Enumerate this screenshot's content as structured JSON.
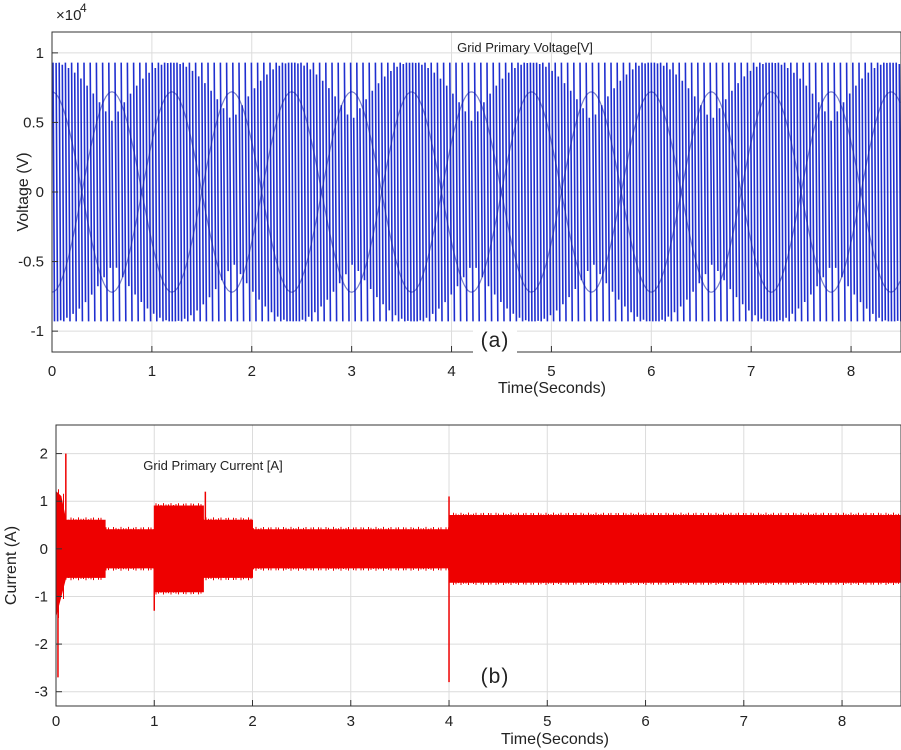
{
  "chart_data": [
    {
      "type": "line",
      "title": "Grid Primary Voltage[V]",
      "panel_label": "(a)",
      "xlabel": "Time(Seconds)",
      "ylabel": "Voltage (V)",
      "y_multiplier": "×10",
      "y_exponent": "4",
      "xlim": [
        0,
        8.5
      ],
      "ylim": [
        -1.15,
        1.15
      ],
      "xticks": [
        "0",
        "1",
        "2",
        "3",
        "4",
        "5",
        "6",
        "7",
        "8"
      ],
      "yticks": [
        "1",
        "0.5",
        "0",
        "-0.5",
        "-1"
      ],
      "grid": true,
      "series": [
        {
          "color": "#1f2fd0",
          "envelope_x": [
            0,
            8.5
          ],
          "envelope_upper": [
            0.93,
            0.93
          ],
          "envelope_lower": [
            -0.93,
            -0.93
          ],
          "beat_period_s": 1.2
        }
      ]
    },
    {
      "type": "line",
      "title": "Grid Primary Current [A]",
      "panel_label": "(b)",
      "xlabel": "Time(Seconds)",
      "ylabel": "Current (A)",
      "xlim": [
        0,
        8.6
      ],
      "ylim": [
        -3.3,
        2.6
      ],
      "xticks": [
        "0",
        "1",
        "2",
        "3",
        "4",
        "5",
        "6",
        "7",
        "8"
      ],
      "yticks": [
        "2",
        "1",
        "0",
        "-1",
        "-2",
        "-3"
      ],
      "grid": true,
      "series": [
        {
          "color": "#ee0000",
          "envelope_x": [
            0,
            0.05,
            0.1,
            0.5,
            0.5,
            1.0,
            1.0,
            1.5,
            1.5,
            2.0,
            2.0,
            4.0,
            4.0,
            8.6
          ],
          "envelope_upper": [
            1.2,
            1.1,
            0.6,
            0.6,
            0.4,
            0.4,
            0.9,
            0.9,
            0.6,
            0.6,
            0.4,
            0.4,
            0.7,
            0.7
          ],
          "envelope_lower": [
            -1.4,
            -1.0,
            -0.6,
            -0.6,
            -0.4,
            -0.4,
            -0.9,
            -0.9,
            -0.6,
            -0.6,
            -0.4,
            -0.4,
            -0.7,
            -0.7
          ],
          "spikes": [
            {
              "x": 0.02,
              "y": -2.7
            },
            {
              "x": 0.1,
              "y": 2.0
            },
            {
              "x": 1.0,
              "y": -1.3
            },
            {
              "x": 1.52,
              "y": 1.2
            },
            {
              "x": 4.0,
              "y": 1.1
            },
            {
              "x": 4.0,
              "y": -2.8
            }
          ]
        }
      ]
    }
  ]
}
